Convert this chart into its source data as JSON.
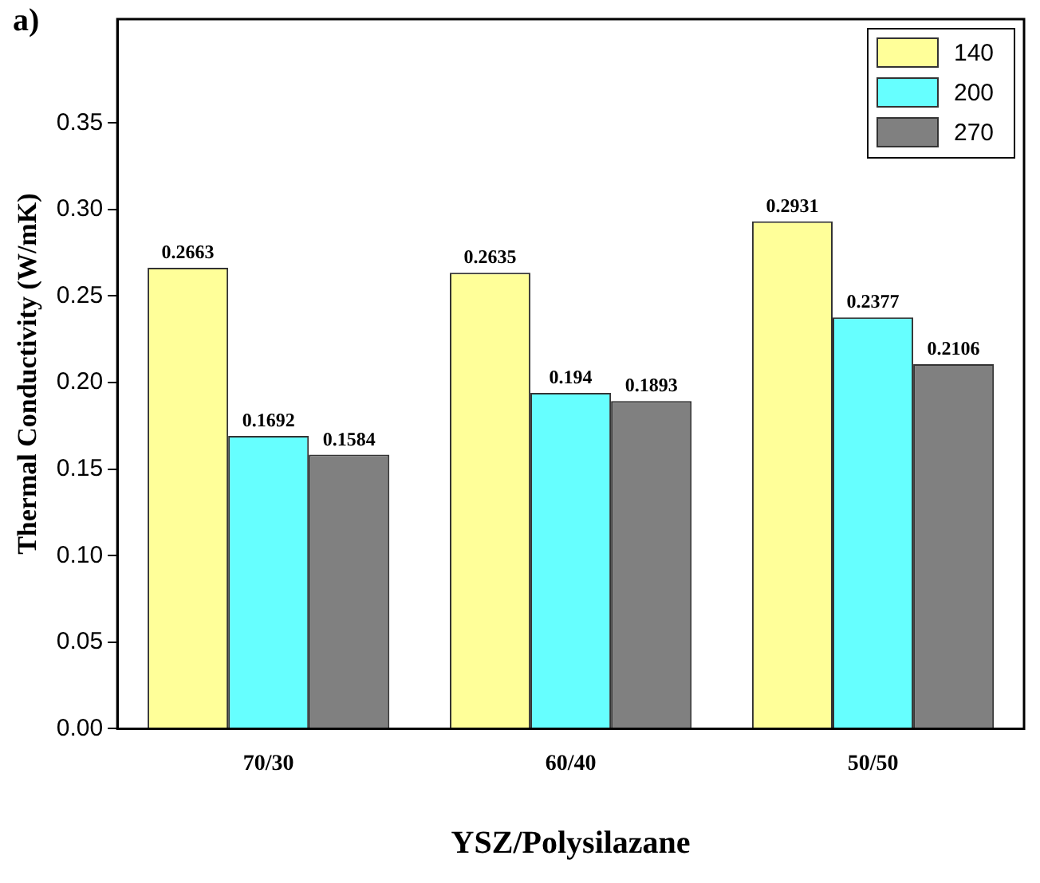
{
  "chart_data": {
    "type": "bar",
    "xlabel": "YSZ/Polysilazane",
    "ylabel": "Thermal Conductivity (W/mK)",
    "annotations": [
      "a)"
    ],
    "categories": [
      "70/30",
      "60/40",
      "50/50"
    ],
    "series": [
      {
        "name": "140",
        "color": "#ffff99",
        "values": [
          0.2663,
          0.2635,
          0.2931
        ]
      },
      {
        "name": "200",
        "color": "#66ffff",
        "values": [
          0.1692,
          0.194,
          0.2377
        ]
      },
      {
        "name": "270",
        "color": "#808080",
        "values": [
          0.1584,
          0.1893,
          0.2106
        ]
      }
    ],
    "ylim": [
      0,
      0.41
    ],
    "yticks": [
      {
        "value": 0,
        "label": "0.00"
      },
      0.05,
      {
        "value": 0.1,
        "label": "0.10"
      },
      0.15,
      {
        "value": 0.2,
        "label": "0.20"
      },
      0.25,
      {
        "value": 0.3,
        "label": "0.30"
      },
      0.35
    ],
    "data_labels": true,
    "legend": "top right",
    "grid": false
  }
}
